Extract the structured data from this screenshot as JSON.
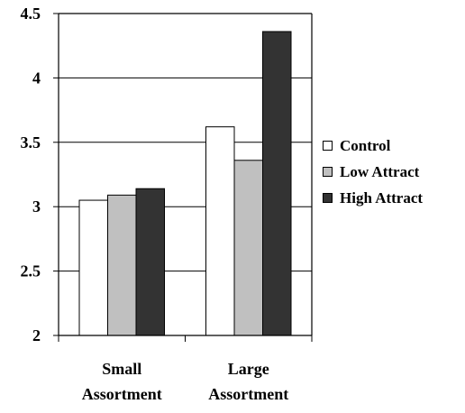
{
  "chart_data": {
    "type": "bar",
    "categories": [
      [
        "Small",
        "Assortment"
      ],
      [
        "Large",
        "Assortment"
      ]
    ],
    "series": [
      {
        "name": "Control",
        "values": [
          3.05,
          3.62
        ],
        "color": "#ffffff"
      },
      {
        "name": "Low Attract",
        "values": [
          3.09,
          3.36
        ],
        "color": "#c0c0c0"
      },
      {
        "name": "High Attract",
        "values": [
          3.14,
          4.36
        ],
        "color": "#333333"
      }
    ],
    "yticks": [
      "2",
      "2.5",
      "3",
      "3.5",
      "4",
      "4.5"
    ],
    "ylim": [
      2,
      4.5
    ],
    "grid": true,
    "legend_position": "right"
  }
}
